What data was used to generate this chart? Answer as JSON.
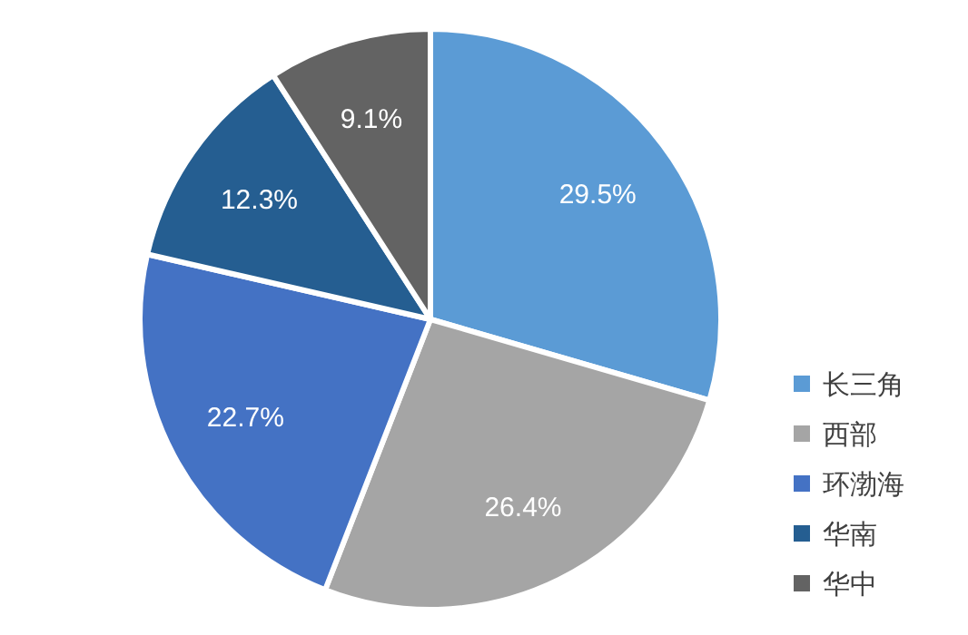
{
  "chart_data": {
    "type": "pie",
    "categories": [
      "长三角",
      "西部",
      "环渤海",
      "华南",
      "华中"
    ],
    "values": [
      29.5,
      26.4,
      22.7,
      12.3,
      9.1
    ],
    "colors": [
      "#5b9bd5",
      "#a5a5a5",
      "#4472c4",
      "#255e91",
      "#636363"
    ],
    "value_labels": [
      "29.5%",
      "26.4%",
      "22.7%",
      "12.3%",
      "9.1%"
    ],
    "legend": "bottom right"
  }
}
